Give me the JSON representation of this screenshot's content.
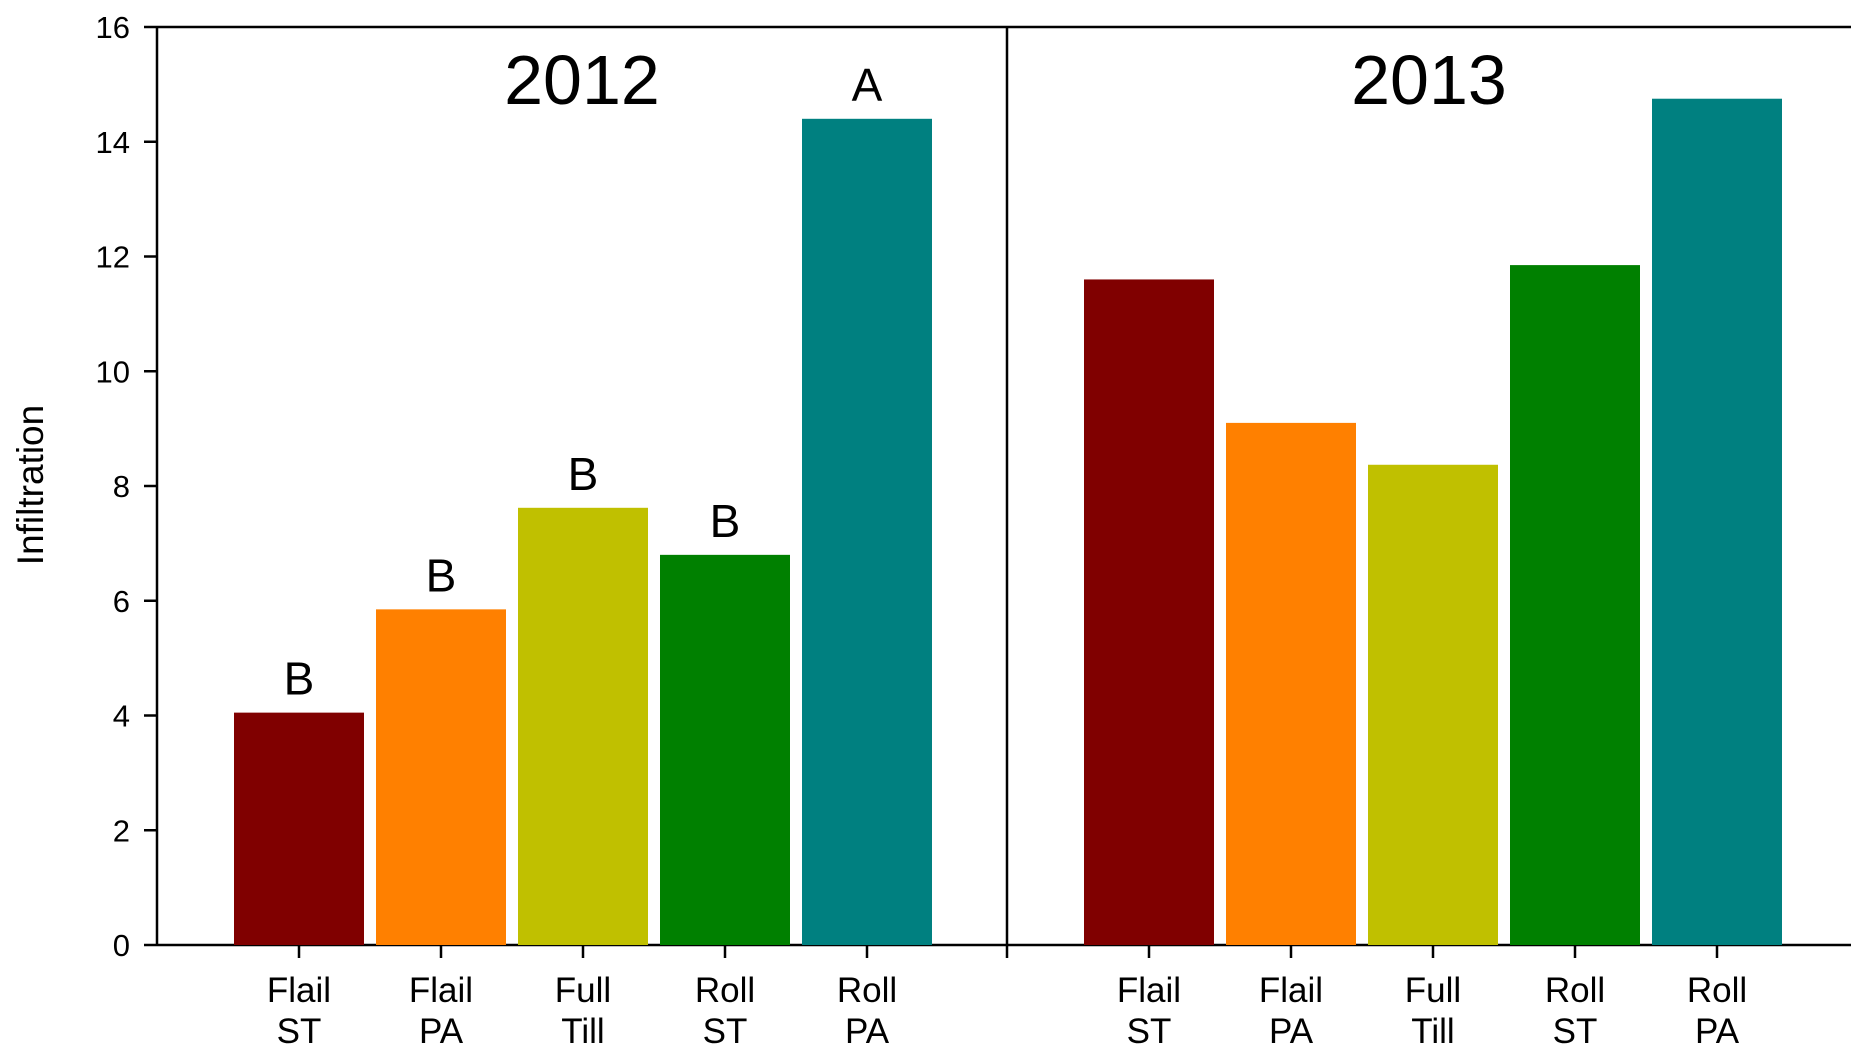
{
  "chart_data": {
    "type": "bar",
    "ylabel": "Infiltration",
    "ylim": [
      0,
      16
    ],
    "yticks": [
      0,
      2,
      4,
      6,
      8,
      10,
      12,
      14,
      16
    ],
    "categories": [
      [
        "Flail",
        "ST"
      ],
      [
        "Flail",
        "PA"
      ],
      [
        "Full",
        "Till"
      ],
      [
        "Roll",
        "ST"
      ],
      [
        "Roll",
        "PA"
      ]
    ],
    "colors": [
      "#800000",
      "#ff8000",
      "#c0c000",
      "#008000",
      "#008080"
    ],
    "panels": [
      {
        "title": "2012",
        "values": [
          4.05,
          5.85,
          7.62,
          6.8,
          14.4
        ],
        "labels": [
          "B",
          "B",
          "B",
          "B",
          "A"
        ]
      },
      {
        "title": "2013",
        "values": [
          11.6,
          9.1,
          8.37,
          11.85,
          14.75
        ],
        "labels": [
          "",
          "",
          "",
          "",
          ""
        ]
      }
    ]
  }
}
